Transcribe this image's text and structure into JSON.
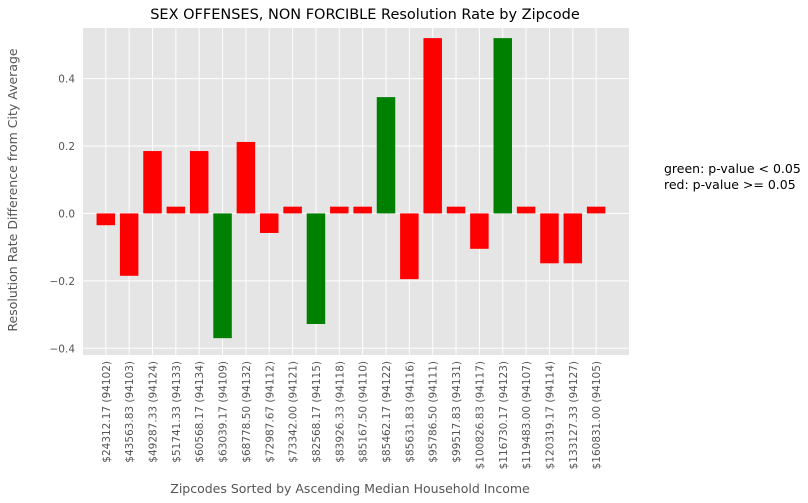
{
  "chart_data": {
    "type": "bar",
    "title": "SEX OFFENSES, NON FORCIBLE Resolution Rate by Zipcode",
    "xlabel": "Zipcodes Sorted by Ascending Median Household Income",
    "ylabel": "Resolution Rate Difference from City Average",
    "ylim": [
      -0.42,
      0.55
    ],
    "yticks": [
      -0.4,
      -0.2,
      0.0,
      0.2,
      0.4
    ],
    "ytick_labels": [
      "−0.4",
      "−0.2",
      "0.0",
      "0.2",
      "0.4"
    ],
    "grid": true,
    "legend": "none",
    "categories": [
      "$24312.17 (94102)",
      "$43563.83 (94103)",
      "$49287.33 (94124)",
      "$51741.33 (94133)",
      "$60568.17 (94134)",
      "$63039.17 (94109)",
      "$68778.50 (94132)",
      "$72987.67 (94112)",
      "$73342.00 (94121)",
      "$82568.17 (94115)",
      "$83926.33 (94118)",
      "$85167.50 (94110)",
      "$85462.17 (94122)",
      "$85631.83 (94116)",
      "$95786.50 (94111)",
      "$99517.83 (94131)",
      "$100826.83 (94117)",
      "$116730.17 (94123)",
      "$119483.00 (94107)",
      "$120319.17 (94114)",
      "$133127.33 (94127)",
      "$160831.00 (94105)"
    ],
    "values": [
      -0.035,
      -0.185,
      0.185,
      0.02,
      0.185,
      -0.37,
      0.212,
      -0.058,
      0.02,
      -0.328,
      0.02,
      0.02,
      0.345,
      -0.195,
      0.52,
      0.02,
      -0.105,
      0.52,
      0.02,
      -0.148,
      -0.148,
      0.02
    ],
    "significant": [
      false,
      false,
      false,
      false,
      false,
      true,
      false,
      false,
      false,
      true,
      false,
      false,
      true,
      false,
      false,
      false,
      false,
      true,
      false,
      false,
      false,
      false
    ],
    "colors": {
      "significant": "#008000",
      "not_significant": "#ff0000",
      "background": "#e5e5e5",
      "grid": "#ffffff"
    }
  },
  "annotation": {
    "green": "green: p-value < 0.05",
    "red": "red: p-value >= 0.05"
  }
}
